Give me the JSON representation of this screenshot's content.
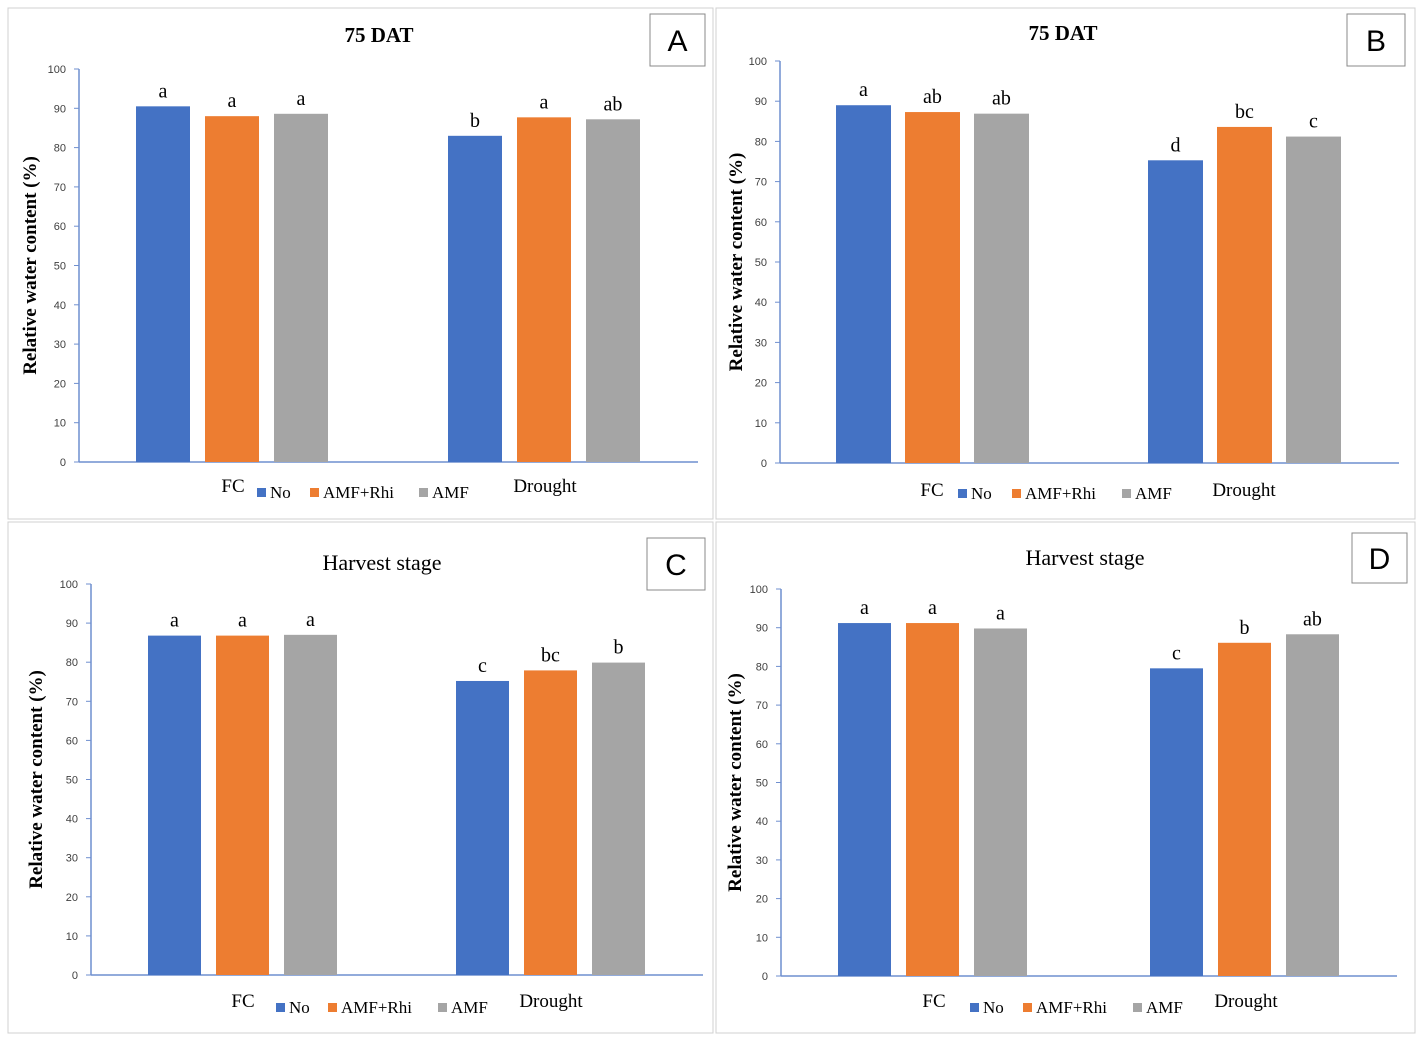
{
  "colors": {
    "No": "#4472C4",
    "AMF+Rhi": "#ED7D31",
    "AMF": "#A5A5A5"
  },
  "chart_data": [
    {
      "type": "bar",
      "panel": "A",
      "title": "75 DAT",
      "ylabel": "Relative water content (%)",
      "xlabel": "",
      "ylim": [
        0,
        100
      ],
      "yticks": [
        0,
        10,
        20,
        30,
        40,
        50,
        60,
        70,
        80,
        90,
        100
      ],
      "categories": [
        "FC",
        "Drought"
      ],
      "series": [
        {
          "name": "No",
          "values": [
            90.5,
            83
          ],
          "labels": [
            "a",
            "b"
          ]
        },
        {
          "name": "AMF+Rhi",
          "values": [
            88,
            87.7
          ],
          "labels": [
            "a",
            "a"
          ]
        },
        {
          "name": "AMF",
          "values": [
            88.6,
            87.2
          ],
          "labels": [
            "a",
            "ab"
          ]
        }
      ],
      "legend": "bottom"
    },
    {
      "type": "bar",
      "panel": "B",
      "title": "75 DAT",
      "ylabel": "Relative water content (%)",
      "xlabel": "",
      "ylim": [
        0,
        100
      ],
      "yticks": [
        0,
        10,
        20,
        30,
        40,
        50,
        60,
        70,
        80,
        90,
        100
      ],
      "categories": [
        "FC",
        "Drought"
      ],
      "series": [
        {
          "name": "No",
          "values": [
            89,
            75.3
          ],
          "labels": [
            "a",
            "d"
          ]
        },
        {
          "name": "AMF+Rhi",
          "values": [
            87.3,
            83.6
          ],
          "labels": [
            "ab",
            "bc"
          ]
        },
        {
          "name": "AMF",
          "values": [
            86.9,
            81.2
          ],
          "labels": [
            "ab",
            "c"
          ]
        }
      ],
      "legend": "bottom"
    },
    {
      "type": "bar",
      "panel": "C",
      "title": "Harvest stage",
      "ylabel": "Relative water content (%)",
      "xlabel": "",
      "ylim": [
        0,
        100
      ],
      "yticks": [
        0,
        10,
        20,
        30,
        40,
        50,
        60,
        70,
        80,
        90,
        100
      ],
      "categories": [
        "FC",
        "Drought"
      ],
      "series": [
        {
          "name": "No",
          "values": [
            86.8,
            75.2
          ],
          "labels": [
            "a",
            "c"
          ]
        },
        {
          "name": "AMF+Rhi",
          "values": [
            86.8,
            77.9
          ],
          "labels": [
            "a",
            "bc"
          ]
        },
        {
          "name": "AMF",
          "values": [
            87,
            79.9
          ],
          "labels": [
            "a",
            "b"
          ]
        }
      ],
      "legend": "bottom"
    },
    {
      "type": "bar",
      "panel": "D",
      "title": "Harvest stage",
      "ylabel": "Relative water content (%)",
      "xlabel": "",
      "ylim": [
        0,
        100
      ],
      "yticks": [
        0,
        10,
        20,
        30,
        40,
        50,
        60,
        70,
        80,
        90,
        100
      ],
      "categories": [
        "FC",
        "Drought"
      ],
      "series": [
        {
          "name": "No",
          "values": [
            91.2,
            79.5
          ],
          "labels": [
            "a",
            "c"
          ]
        },
        {
          "name": "AMF+Rhi",
          "values": [
            91.2,
            86.1
          ],
          "labels": [
            "a",
            "b"
          ]
        },
        {
          "name": "AMF",
          "values": [
            89.8,
            88.3
          ],
          "labels": [
            "a",
            "ab"
          ]
        }
      ],
      "legend": "bottom"
    }
  ]
}
